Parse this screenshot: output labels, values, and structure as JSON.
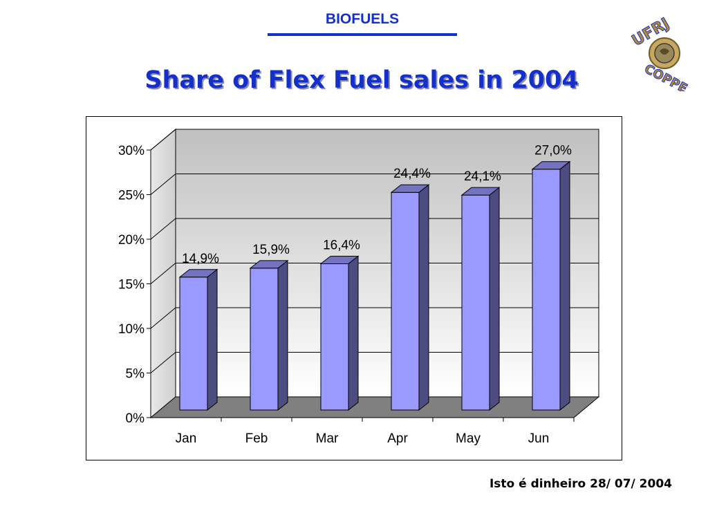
{
  "header": {
    "label": "BIOFUELS",
    "title": "Share of Flex Fuel sales in 2004"
  },
  "logo": {
    "icon": "ufrj-coppe-logo-icon",
    "text_top": "UFRJ",
    "text_bottom": "COPPE"
  },
  "source": "Isto é dinheiro 28/ 07/ 2004",
  "colors": {
    "accent": "#1530c8",
    "bar_front": "#9999ff",
    "bar_side": "#4c4c80",
    "bar_top": "#7373c0",
    "floor": "#808080"
  },
  "chart_data": {
    "type": "bar",
    "style": "3d",
    "categories": [
      "Jan",
      "Feb",
      "Mar",
      "Apr",
      "May",
      "Jun"
    ],
    "values": [
      14.9,
      15.9,
      16.4,
      24.4,
      24.1,
      27.0
    ],
    "data_labels": [
      "14,9%",
      "15,9%",
      "16,4%",
      "24,4%",
      "24,1%",
      "27,0%"
    ],
    "y_ticks": [
      "0%",
      "5%",
      "10%",
      "15%",
      "20%",
      "25%",
      "30%"
    ],
    "ylim": [
      0,
      30
    ],
    "y_unit": "%",
    "grid": true,
    "legend": "none",
    "title": "",
    "xlabel": "",
    "ylabel": ""
  }
}
